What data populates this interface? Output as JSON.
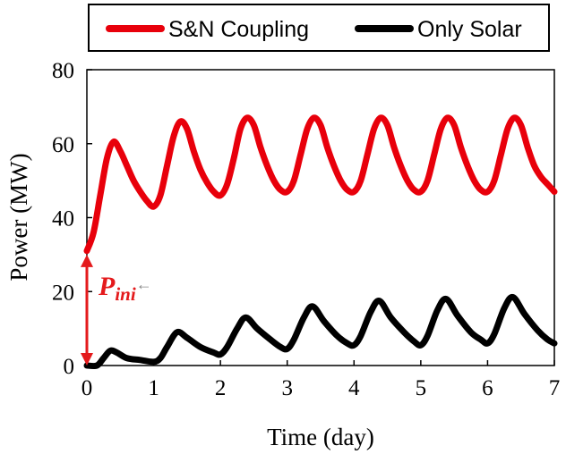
{
  "chart_data": {
    "type": "line",
    "title": "",
    "xlabel": "Time (day)",
    "ylabel": "Power (MW)",
    "xlim": [
      0,
      7
    ],
    "ylim": [
      0,
      80
    ],
    "xticks": [
      0,
      1,
      2,
      3,
      4,
      5,
      6,
      7
    ],
    "yticks": [
      0,
      20,
      40,
      60,
      80
    ],
    "grid": false,
    "legend_position": "top",
    "series": [
      {
        "name": "S&N Coupling",
        "color": "#e8000b",
        "points": [
          [
            0,
            31
          ],
          [
            0.1,
            36
          ],
          [
            0.2,
            46
          ],
          [
            0.3,
            56
          ],
          [
            0.4,
            60.5
          ],
          [
            0.5,
            58
          ],
          [
            0.6,
            54
          ],
          [
            0.7,
            50
          ],
          [
            0.8,
            47
          ],
          [
            0.9,
            44.5
          ],
          [
            1.0,
            43
          ],
          [
            1.1,
            46
          ],
          [
            1.2,
            54
          ],
          [
            1.3,
            62
          ],
          [
            1.4,
            66
          ],
          [
            1.5,
            64
          ],
          [
            1.6,
            58
          ],
          [
            1.7,
            53
          ],
          [
            1.8,
            49.5
          ],
          [
            1.9,
            47
          ],
          [
            2.0,
            46
          ],
          [
            2.1,
            49
          ],
          [
            2.2,
            56
          ],
          [
            2.3,
            64
          ],
          [
            2.4,
            67
          ],
          [
            2.5,
            65
          ],
          [
            2.6,
            59
          ],
          [
            2.7,
            54
          ],
          [
            2.8,
            50
          ],
          [
            2.9,
            47.5
          ],
          [
            3.0,
            47
          ],
          [
            3.1,
            50
          ],
          [
            3.2,
            57
          ],
          [
            3.3,
            64
          ],
          [
            3.4,
            67
          ],
          [
            3.5,
            65
          ],
          [
            3.6,
            59
          ],
          [
            3.7,
            54
          ],
          [
            3.8,
            50
          ],
          [
            3.9,
            47.5
          ],
          [
            4.0,
            47
          ],
          [
            4.1,
            50
          ],
          [
            4.2,
            57
          ],
          [
            4.3,
            64
          ],
          [
            4.4,
            67
          ],
          [
            4.5,
            65
          ],
          [
            4.6,
            59
          ],
          [
            4.7,
            54
          ],
          [
            4.8,
            50
          ],
          [
            4.9,
            47.5
          ],
          [
            5.0,
            47
          ],
          [
            5.1,
            50
          ],
          [
            5.2,
            57
          ],
          [
            5.3,
            64
          ],
          [
            5.4,
            67
          ],
          [
            5.5,
            65
          ],
          [
            5.6,
            59
          ],
          [
            5.7,
            54
          ],
          [
            5.8,
            50
          ],
          [
            5.9,
            47.5
          ],
          [
            6.0,
            47
          ],
          [
            6.1,
            50
          ],
          [
            6.2,
            57
          ],
          [
            6.3,
            64
          ],
          [
            6.4,
            67
          ],
          [
            6.5,
            65
          ],
          [
            6.6,
            59
          ],
          [
            6.7,
            54
          ],
          [
            6.8,
            51
          ],
          [
            6.9,
            49
          ],
          [
            7.0,
            47
          ]
        ]
      },
      {
        "name": "Only Solar",
        "color": "#000000",
        "points": [
          [
            0,
            0
          ],
          [
            0.15,
            0
          ],
          [
            0.25,
            2
          ],
          [
            0.35,
            4
          ],
          [
            0.45,
            3.5
          ],
          [
            0.6,
            2
          ],
          [
            0.8,
            1.5
          ],
          [
            1.0,
            1
          ],
          [
            1.1,
            2
          ],
          [
            1.2,
            5
          ],
          [
            1.35,
            9
          ],
          [
            1.5,
            7.5
          ],
          [
            1.7,
            5
          ],
          [
            1.9,
            3.5
          ],
          [
            2.0,
            3
          ],
          [
            2.1,
            5
          ],
          [
            2.25,
            10
          ],
          [
            2.38,
            13
          ],
          [
            2.55,
            10
          ],
          [
            2.75,
            7
          ],
          [
            2.9,
            5
          ],
          [
            3.0,
            4.5
          ],
          [
            3.1,
            7
          ],
          [
            3.25,
            13
          ],
          [
            3.38,
            16
          ],
          [
            3.55,
            12
          ],
          [
            3.75,
            8
          ],
          [
            3.9,
            6
          ],
          [
            4.0,
            5.5
          ],
          [
            4.1,
            8
          ],
          [
            4.25,
            14.5
          ],
          [
            4.38,
            17.5
          ],
          [
            4.55,
            13
          ],
          [
            4.75,
            9
          ],
          [
            4.9,
            6.5
          ],
          [
            5.0,
            5.5
          ],
          [
            5.1,
            8
          ],
          [
            5.25,
            15
          ],
          [
            5.38,
            18
          ],
          [
            5.55,
            13.5
          ],
          [
            5.75,
            9
          ],
          [
            5.9,
            7
          ],
          [
            6.0,
            6
          ],
          [
            6.1,
            8.5
          ],
          [
            6.25,
            15.5
          ],
          [
            6.38,
            18.5
          ],
          [
            6.55,
            14
          ],
          [
            6.75,
            9.5
          ],
          [
            6.9,
            7
          ],
          [
            7.0,
            6
          ]
        ]
      }
    ],
    "annotations": [
      {
        "text": "P",
        "subscript": "ini",
        "suffix": "←",
        "color": "#e41a1c",
        "arrow_from": [
          0,
          0
        ],
        "arrow_to": [
          0,
          30
        ]
      }
    ]
  }
}
